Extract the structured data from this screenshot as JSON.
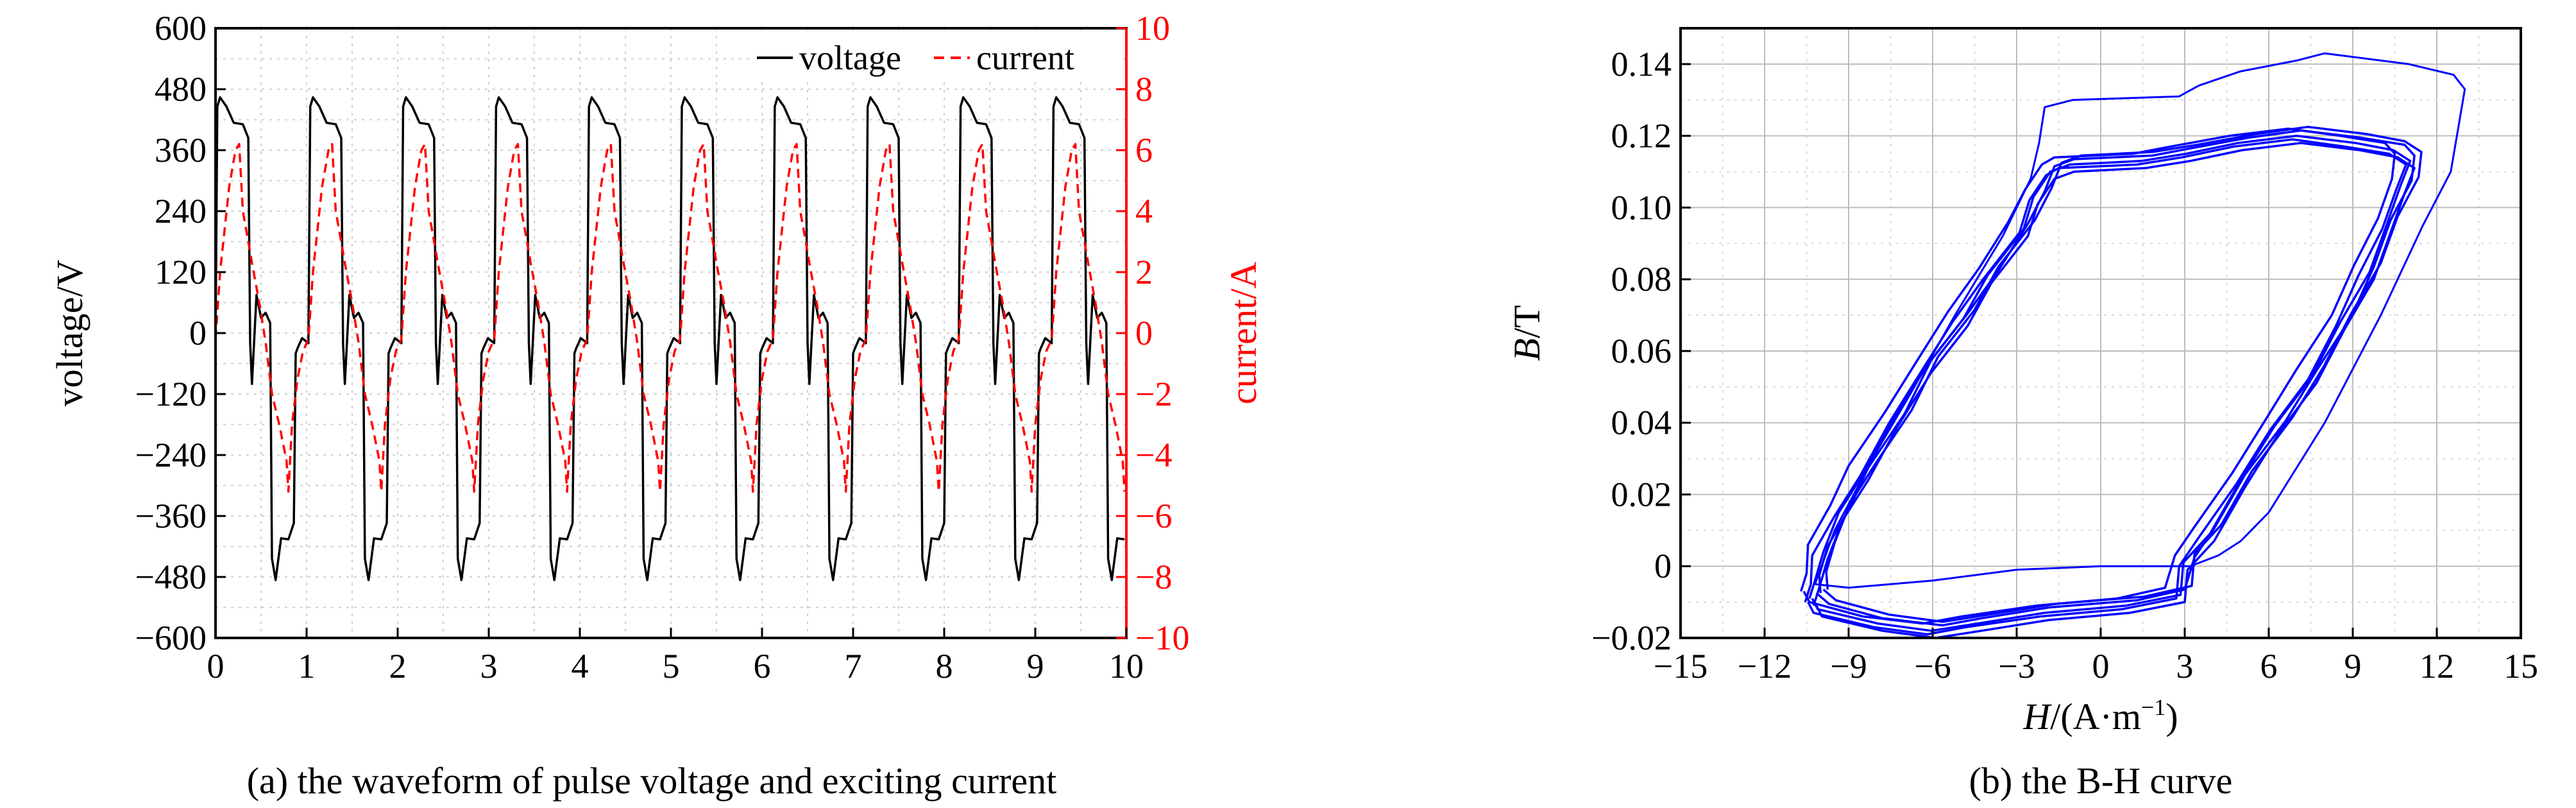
{
  "chart_data": [
    {
      "type": "line",
      "caption": "(a) the waveform of pulse voltage and exciting current",
      "xlabel": "",
      "ylabel": "voltage/V",
      "y2label": "current/A",
      "xlim": [
        0,
        10
      ],
      "ylim": [
        -600,
        600
      ],
      "y2lim": [
        -10,
        10
      ],
      "xticks": [
        "0",
        "1",
        "2",
        "3",
        "4",
        "5",
        "6",
        "7",
        "8",
        "9",
        "10"
      ],
      "yticks": [
        "600",
        "480",
        "360",
        "240",
        "120",
        "0",
        "−120",
        "−240",
        "−360",
        "−480",
        "−600"
      ],
      "y2ticks": [
        "10",
        "8",
        "6",
        "4",
        "2",
        "0",
        "−2",
        "−4",
        "−6",
        "−8",
        "−10"
      ],
      "grid": true,
      "legend_position": "top-right",
      "period": 1.02,
      "series": [
        {
          "name": "voltage",
          "color": "#000000",
          "style": "solid",
          "axis": "left",
          "values_one_period": [
            {
              "x": 0.0,
              "y": -20
            },
            {
              "x": 0.02,
              "y": 440
            },
            {
              "x": 0.05,
              "y": 470
            },
            {
              "x": 0.12,
              "y": 440
            },
            {
              "x": 0.2,
              "y": 420
            },
            {
              "x": 0.3,
              "y": 405
            },
            {
              "x": 0.36,
              "y": 390
            },
            {
              "x": 0.38,
              "y": -20
            },
            {
              "x": 0.4,
              "y": -100
            },
            {
              "x": 0.45,
              "y": 75
            },
            {
              "x": 0.5,
              "y": 30
            },
            {
              "x": 0.55,
              "y": 40
            },
            {
              "x": 0.6,
              "y": 20
            },
            {
              "x": 0.62,
              "y": -450
            },
            {
              "x": 0.66,
              "y": -480
            },
            {
              "x": 0.72,
              "y": -410
            },
            {
              "x": 0.8,
              "y": -400
            },
            {
              "x": 0.86,
              "y": -380
            },
            {
              "x": 0.88,
              "y": -40
            },
            {
              "x": 0.9,
              "y": -30
            },
            {
              "x": 0.95,
              "y": -10
            },
            {
              "x": 1.02,
              "y": -20
            }
          ]
        },
        {
          "name": "current",
          "color": "#ff0000",
          "style": "dashed",
          "axis": "right",
          "values_one_period": [
            {
              "x": 0.0,
              "y": -0.2
            },
            {
              "x": 0.05,
              "y": 2.0
            },
            {
              "x": 0.15,
              "y": 4.8
            },
            {
              "x": 0.22,
              "y": 6.0
            },
            {
              "x": 0.26,
              "y": 6.2
            },
            {
              "x": 0.3,
              "y": 4.0
            },
            {
              "x": 0.36,
              "y": 3.0
            },
            {
              "x": 0.4,
              "y": 2.3
            },
            {
              "x": 0.48,
              "y": 1.0
            },
            {
              "x": 0.55,
              "y": -0.3
            },
            {
              "x": 0.62,
              "y": -2.0
            },
            {
              "x": 0.7,
              "y": -3.0
            },
            {
              "x": 0.78,
              "y": -4.2
            },
            {
              "x": 0.8,
              "y": -5.2
            },
            {
              "x": 0.84,
              "y": -3.0
            },
            {
              "x": 0.9,
              "y": -1.5
            },
            {
              "x": 0.96,
              "y": -0.6
            },
            {
              "x": 1.02,
              "y": -0.2
            }
          ]
        }
      ]
    },
    {
      "type": "line",
      "caption": "(b) the B-H curve",
      "xlabel_var": "H",
      "xlabel_unit": "/(A·m",
      "xlabel_sup": "−1",
      "xlabel_close": ")",
      "ylabel_var": "B",
      "ylabel_unit": "/T",
      "xlim": [
        -15,
        15
      ],
      "ylim": [
        -0.02,
        0.15
      ],
      "xticks": [
        "−15",
        "−12",
        "−9",
        "−6",
        "−3",
        "0",
        "3",
        "6",
        "9",
        "12",
        "15"
      ],
      "yticks": [
        "0.14",
        "0.12",
        "0.10",
        "0.08",
        "0.06",
        "0.04",
        "0.02",
        "0",
        "−0.02"
      ],
      "grid": true,
      "series": [
        {
          "color": "#0000ff",
          "loop": [
            {
              "x": -10.3,
              "y": -0.009
            },
            {
              "x": -10.2,
              "y": -0.004
            },
            {
              "x": -10.0,
              "y": 0.004
            },
            {
              "x": -9.3,
              "y": 0.015
            },
            {
              "x": -8.5,
              "y": 0.026
            },
            {
              "x": -7.3,
              "y": 0.041
            },
            {
              "x": -6.2,
              "y": 0.056
            },
            {
              "x": -5.0,
              "y": 0.069
            },
            {
              "x": -4.0,
              "y": 0.081
            },
            {
              "x": -2.8,
              "y": 0.094
            },
            {
              "x": -2.3,
              "y": 0.103
            },
            {
              "x": -1.8,
              "y": 0.11
            },
            {
              "x": -1.2,
              "y": 0.112
            },
            {
              "x": 1.5,
              "y": 0.113
            },
            {
              "x": 3.0,
              "y": 0.115
            },
            {
              "x": 5.0,
              "y": 0.118
            },
            {
              "x": 7.0,
              "y": 0.12
            },
            {
              "x": 9.0,
              "y": 0.118
            },
            {
              "x": 10.5,
              "y": 0.116
            },
            {
              "x": 11.0,
              "y": 0.113
            },
            {
              "x": 10.8,
              "y": 0.106
            },
            {
              "x": 10.2,
              "y": 0.095
            },
            {
              "x": 9.5,
              "y": 0.082
            },
            {
              "x": 8.6,
              "y": 0.068
            },
            {
              "x": 7.5,
              "y": 0.053
            },
            {
              "x": 6.3,
              "y": 0.039
            },
            {
              "x": 5.0,
              "y": 0.024
            },
            {
              "x": 3.8,
              "y": 0.009
            },
            {
              "x": 3.0,
              "y": 0.001
            },
            {
              "x": 2.8,
              "y": -0.008
            },
            {
              "x": 1.0,
              "y": -0.011
            },
            {
              "x": -2.0,
              "y": -0.013
            },
            {
              "x": -4.5,
              "y": -0.016
            },
            {
              "x": -6.0,
              "y": -0.018
            },
            {
              "x": -8.0,
              "y": -0.016
            },
            {
              "x": -10.0,
              "y": -0.012
            },
            {
              "x": -10.3,
              "y": -0.009
            }
          ],
          "outer_loop": [
            {
              "x": -10.2,
              "y": -0.005
            },
            {
              "x": -9.5,
              "y": 0.01
            },
            {
              "x": -8.0,
              "y": 0.032
            },
            {
              "x": -6.8,
              "y": 0.048
            },
            {
              "x": -5.2,
              "y": 0.07
            },
            {
              "x": -3.5,
              "y": 0.092
            },
            {
              "x": -2.5,
              "y": 0.108
            },
            {
              "x": -2.2,
              "y": 0.118
            },
            {
              "x": -2.0,
              "y": 0.128
            },
            {
              "x": -1.0,
              "y": 0.13
            },
            {
              "x": 2.8,
              "y": 0.131
            },
            {
              "x": 3.5,
              "y": 0.134
            },
            {
              "x": 5.0,
              "y": 0.138
            },
            {
              "x": 7.0,
              "y": 0.141
            },
            {
              "x": 8.0,
              "y": 0.143
            },
            {
              "x": 11.0,
              "y": 0.14
            },
            {
              "x": 12.6,
              "y": 0.137
            },
            {
              "x": 13.0,
              "y": 0.133
            },
            {
              "x": 12.5,
              "y": 0.11
            },
            {
              "x": 11.5,
              "y": 0.095
            },
            {
              "x": 10.0,
              "y": 0.07
            },
            {
              "x": 8.0,
              "y": 0.04
            },
            {
              "x": 6.0,
              "y": 0.015
            },
            {
              "x": 5.0,
              "y": 0.007
            },
            {
              "x": 4.2,
              "y": 0.003
            },
            {
              "x": 3.2,
              "y": 0.0
            },
            {
              "x": 0.0,
              "y": 0.0
            },
            {
              "x": -3.0,
              "y": -0.001
            },
            {
              "x": -6.0,
              "y": -0.004
            },
            {
              "x": -9.0,
              "y": -0.006
            },
            {
              "x": -10.2,
              "y": -0.005
            }
          ]
        }
      ]
    }
  ]
}
